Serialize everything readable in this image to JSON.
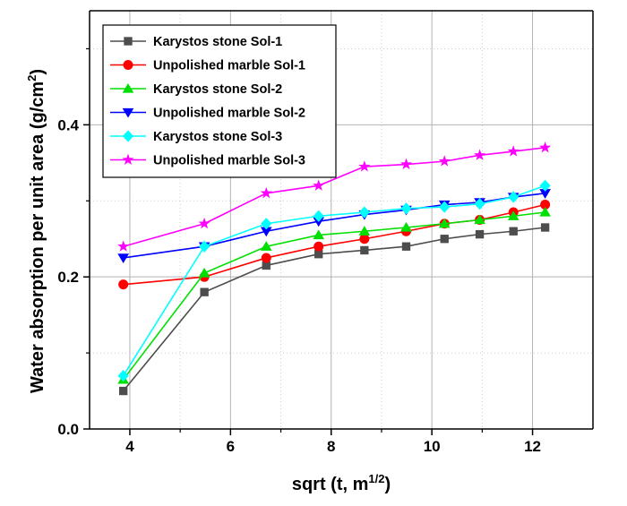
{
  "chart_data": {
    "type": "line",
    "title": "",
    "xlabel": {
      "base": "sqrt (t, m",
      "sup": "1/2",
      "close": ")"
    },
    "ylabel": {
      "base": "Water absorption per unit area (g/cm",
      "sup": "2",
      "close": ")"
    },
    "xlim": [
      3.2,
      13.2
    ],
    "ylim": [
      0.0,
      0.55
    ],
    "xticks": [
      4,
      6,
      8,
      10,
      12
    ],
    "xtick_labels": [
      "4",
      "6",
      "8",
      "10",
      "12"
    ],
    "yticks": [
      0.0,
      0.2,
      0.4
    ],
    "ytick_labels": [
      "0.0",
      "0.2",
      "0.4"
    ],
    "grid": true,
    "legend_position": "top-left",
    "x": [
      3.87,
      5.48,
      6.71,
      7.75,
      8.66,
      9.49,
      10.25,
      10.95,
      11.62,
      12.25
    ],
    "series": [
      {
        "name": "Karystos stone Sol-1",
        "color": "#4d4d4d",
        "marker": "square",
        "values": [
          0.05,
          0.18,
          0.215,
          0.23,
          0.235,
          0.24,
          0.25,
          0.256,
          0.26,
          0.265
        ]
      },
      {
        "name": "Unpolished marble Sol-1",
        "color": "#ff0000",
        "marker": "circle",
        "values": [
          0.19,
          0.2,
          0.225,
          0.24,
          0.25,
          0.26,
          0.27,
          0.275,
          0.285,
          0.295
        ]
      },
      {
        "name": "Karystos stone Sol-2",
        "color": "#00e000",
        "marker": "triangle-up",
        "values": [
          0.065,
          0.205,
          0.24,
          0.255,
          0.26,
          0.265,
          0.27,
          0.275,
          0.28,
          0.285
        ]
      },
      {
        "name": "Unpolished marble Sol-2",
        "color": "#0000ff",
        "marker": "triangle-down",
        "values": [
          0.225,
          0.24,
          0.26,
          0.273,
          0.282,
          0.288,
          0.295,
          0.298,
          0.305,
          0.31
        ]
      },
      {
        "name": "Karystos stone Sol-3",
        "color": "#00ffff",
        "marker": "diamond",
        "values": [
          0.07,
          0.24,
          0.27,
          0.28,
          0.285,
          0.29,
          0.292,
          0.296,
          0.305,
          0.32
        ]
      },
      {
        "name": "Unpolished marble Sol-3",
        "color": "#ff00ff",
        "marker": "star",
        "values": [
          0.24,
          0.27,
          0.31,
          0.32,
          0.345,
          0.348,
          0.352,
          0.36,
          0.365,
          0.37
        ]
      }
    ]
  }
}
